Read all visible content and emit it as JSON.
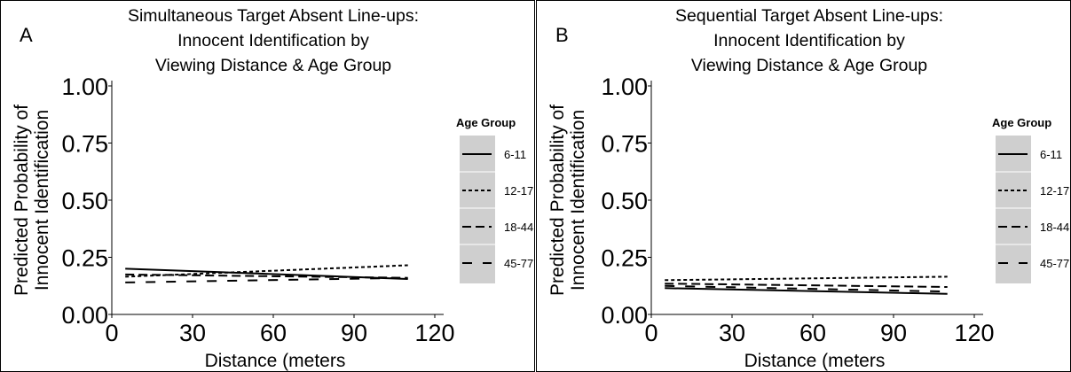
{
  "chart_data": [
    {
      "type": "line",
      "panel_label": "A",
      "title_lines": [
        "Simultaneous Target Absent Line-ups:",
        "Innocent Identification by",
        "Viewing Distance & Age Group"
      ],
      "xlabel": "Distance (meters",
      "ylabel_lines": [
        "Predicted Probability of",
        "Innocent Identification"
      ],
      "xlim": [
        0,
        120
      ],
      "ylim": [
        0,
        1
      ],
      "xticks": [
        0,
        30,
        60,
        90,
        120
      ],
      "yticks": [
        "0.00",
        "0.25",
        "0.50",
        "0.75",
        "1.00"
      ],
      "grid": false,
      "legend": {
        "title": "Age Group",
        "position": "right",
        "entries": [
          "6-11",
          "12-17",
          "18-44",
          "45-77"
        ]
      },
      "series": [
        {
          "name": "6-11",
          "linestyle": "solid",
          "x": [
            5,
            110
          ],
          "y": [
            0.2,
            0.155
          ]
        },
        {
          "name": "12-17",
          "linestyle": "dotted",
          "x": [
            5,
            110
          ],
          "y": [
            0.165,
            0.215
          ]
        },
        {
          "name": "18-44",
          "linestyle": "dashed",
          "x": [
            5,
            110
          ],
          "y": [
            0.175,
            0.16
          ]
        },
        {
          "name": "45-77",
          "linestyle": "longdash",
          "x": [
            5,
            110
          ],
          "y": [
            0.14,
            0.16
          ]
        }
      ]
    },
    {
      "type": "line",
      "panel_label": "B",
      "title_lines": [
        "Sequential Target Absent Line-ups:",
        "Innocent Identification by",
        "Viewing Distance & Age Group"
      ],
      "xlabel": "Distance (meters",
      "ylabel_lines": [
        "Predicted Probability of",
        "Innocent Identification"
      ],
      "xlim": [
        0,
        120
      ],
      "ylim": [
        0,
        1
      ],
      "xticks": [
        0,
        30,
        60,
        90,
        120
      ],
      "yticks": [
        "0.00",
        "0.25",
        "0.50",
        "0.75",
        "1.00"
      ],
      "grid": false,
      "legend": {
        "title": "Age Group",
        "position": "right",
        "entries": [
          "6-11",
          "12-17",
          "18-44",
          "45-77"
        ]
      },
      "series": [
        {
          "name": "6-11",
          "linestyle": "solid",
          "x": [
            5,
            110
          ],
          "y": [
            0.115,
            0.09
          ]
        },
        {
          "name": "12-17",
          "linestyle": "dotted",
          "x": [
            5,
            110
          ],
          "y": [
            0.15,
            0.165
          ]
        },
        {
          "name": "18-44",
          "linestyle": "dashed",
          "x": [
            5,
            110
          ],
          "y": [
            0.135,
            0.12
          ]
        },
        {
          "name": "45-77",
          "linestyle": "longdash",
          "x": [
            5,
            110
          ],
          "y": [
            0.125,
            0.1
          ]
        }
      ]
    }
  ],
  "colors": {
    "line": "#000000",
    "legend_background": "#cfcfcf",
    "legend_separator": "#ffffff",
    "panel_border": "#000000"
  }
}
